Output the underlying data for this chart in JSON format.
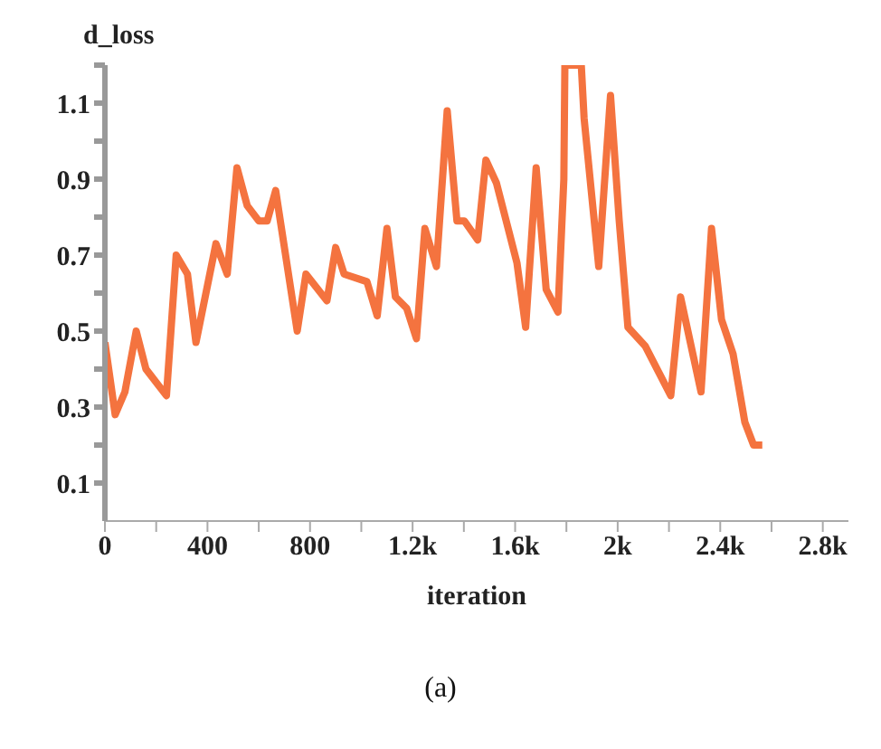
{
  "chart_data": {
    "type": "line",
    "ylabel": "d_loss",
    "xlabel": "iteration",
    "annotations": [
      "(a)"
    ],
    "grid": false,
    "legend": false,
    "marker": "none",
    "line_style": "solid",
    "xlim": [
      0,
      2900
    ],
    "ylim": [
      0,
      1.2
    ],
    "xticks": [
      0,
      {
        "value": 200,
        "label": null
      },
      400,
      {
        "value": 600,
        "label": null
      },
      800,
      {
        "value": 1000,
        "label": null
      },
      {
        "value": 1200,
        "label": "1.2k"
      },
      {
        "value": 1400,
        "label": null
      },
      {
        "value": 1600,
        "label": "1.6k"
      },
      {
        "value": 1800,
        "label": null
      },
      {
        "value": 2000,
        "label": "2k"
      },
      {
        "value": 2200,
        "label": null
      },
      {
        "value": 2400,
        "label": "2.4k"
      },
      {
        "value": 2600,
        "label": null
      },
      {
        "value": 2800,
        "label": "2.8k"
      }
    ],
    "yticks": [
      0.1,
      {
        "value": 0.2,
        "label": null
      },
      0.3,
      {
        "value": 0.4,
        "label": null
      },
      0.5,
      {
        "value": 0.6,
        "label": null
      },
      0.7,
      {
        "value": 0.8,
        "label": null
      },
      0.9,
      {
        "value": 1.0,
        "label": null
      },
      1.1,
      {
        "value": 1.2,
        "label": null
      }
    ],
    "series": [
      {
        "color": "#f4733f",
        "x": [
          0,
          40,
          78,
          122,
          160,
          240,
          278,
          322,
          355,
          433,
          477,
          515,
          555,
          600,
          633,
          666,
          750,
          784,
          866,
          900,
          933,
          1022,
          1062,
          1100,
          1133,
          1177,
          1215,
          1248,
          1293,
          1335,
          1373,
          1402,
          1454,
          1486,
          1527,
          1607,
          1641,
          1682,
          1721,
          1767,
          1790,
          1794,
          1858,
          1869,
          1926,
          1972,
          2006,
          2040,
          2108,
          2207,
          2245,
          2325,
          2366,
          2405,
          2450,
          2496,
          2530,
          2564
        ],
        "values": [
          0.47,
          0.28,
          0.34,
          0.5,
          0.4,
          0.33,
          0.7,
          0.65,
          0.47,
          0.73,
          0.65,
          0.93,
          0.83,
          0.79,
          0.79,
          0.87,
          0.5,
          0.65,
          0.58,
          0.72,
          0.65,
          0.63,
          0.54,
          0.77,
          0.59,
          0.56,
          0.48,
          0.77,
          0.67,
          1.08,
          0.79,
          0.79,
          0.74,
          0.95,
          0.89,
          0.68,
          0.51,
          0.93,
          0.61,
          0.55,
          0.9,
          1.2,
          1.2,
          1.06,
          0.67,
          1.12,
          0.79,
          0.51,
          0.46,
          0.33,
          0.59,
          0.34,
          0.77,
          0.53,
          0.44,
          0.26,
          0.2,
          0.2
        ]
      }
    ]
  }
}
